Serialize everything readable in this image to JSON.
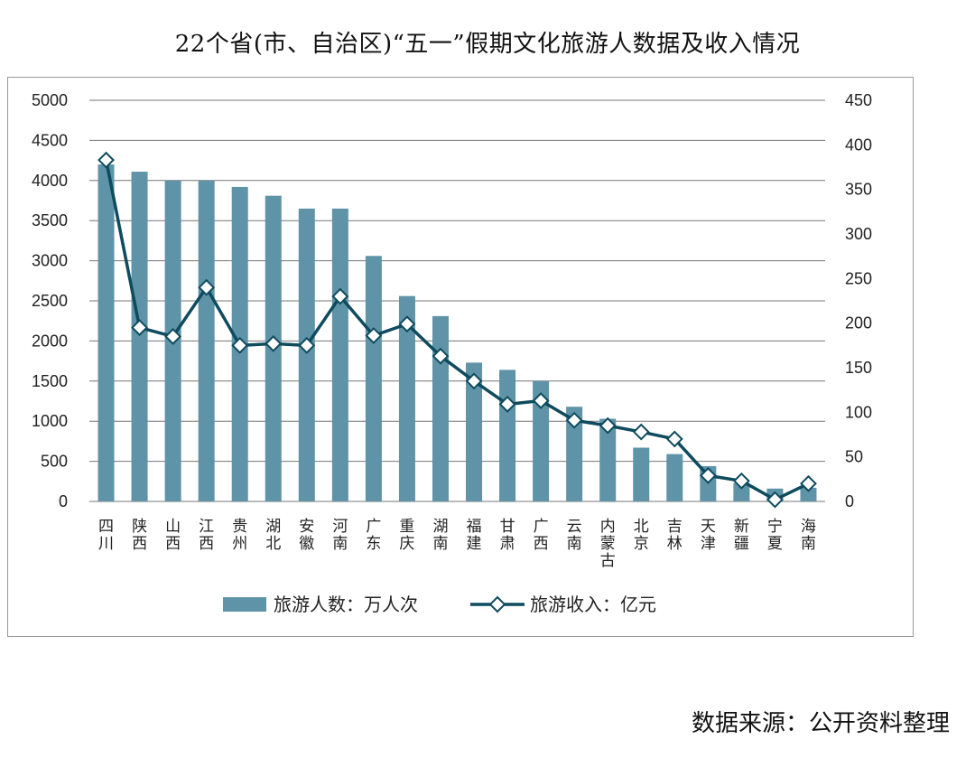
{
  "title": "22个省(市、自治区)“五一”假期文化旅游人数据及收入情况",
  "source": "数据来源：公开资料整理",
  "colors": {
    "bar": "#5f93a8",
    "line": "#0f4b5e",
    "grid": "#777777",
    "marker_fill": "#ffffff"
  },
  "chart_data": {
    "type": "bar",
    "title": "22个省(市、自治区)“五一”假期文化旅游人数据及收入情况",
    "categories": [
      "四川",
      "陕西",
      "山西",
      "江西",
      "贵州",
      "湖北",
      "安徽",
      "河南",
      "广东",
      "重庆",
      "湖南",
      "福建",
      "甘肃",
      "广西",
      "云南",
      "内蒙古",
      "北京",
      "吉林",
      "天津",
      "新疆",
      "宁夏",
      "海南"
    ],
    "series": [
      {
        "name": "旅游人数：万人次",
        "type": "bar",
        "axis": "left",
        "values": [
          4200,
          4110,
          4000,
          4000,
          3920,
          3810,
          3650,
          3650,
          3060,
          2560,
          2310,
          1730,
          1640,
          1500,
          1180,
          1030,
          670,
          590,
          440,
          230,
          160,
          170
        ]
      },
      {
        "name": "旅游收入：亿元",
        "type": "line",
        "axis": "right",
        "values": [
          383,
          195,
          185,
          240,
          175,
          177,
          175,
          230,
          186,
          199,
          163,
          135,
          109,
          113,
          91,
          85,
          78,
          70,
          29,
          23,
          2,
          20
        ]
      }
    ],
    "y_left": {
      "min": 0,
      "max": 5000,
      "ticks": [
        "0",
        "500",
        "1000",
        "1500",
        "2000",
        "2500",
        "3000",
        "3500",
        "4000",
        "4500",
        "5000"
      ]
    },
    "y_right": {
      "min": 0,
      "max": 450,
      "ticks": [
        "0",
        "50",
        "100",
        "150",
        "200",
        "250",
        "300",
        "350",
        "400",
        "450"
      ]
    },
    "legend": [
      "旅游人数：万人次",
      "旅游收入：亿元"
    ],
    "legend_position": "bottom",
    "grid": true
  }
}
